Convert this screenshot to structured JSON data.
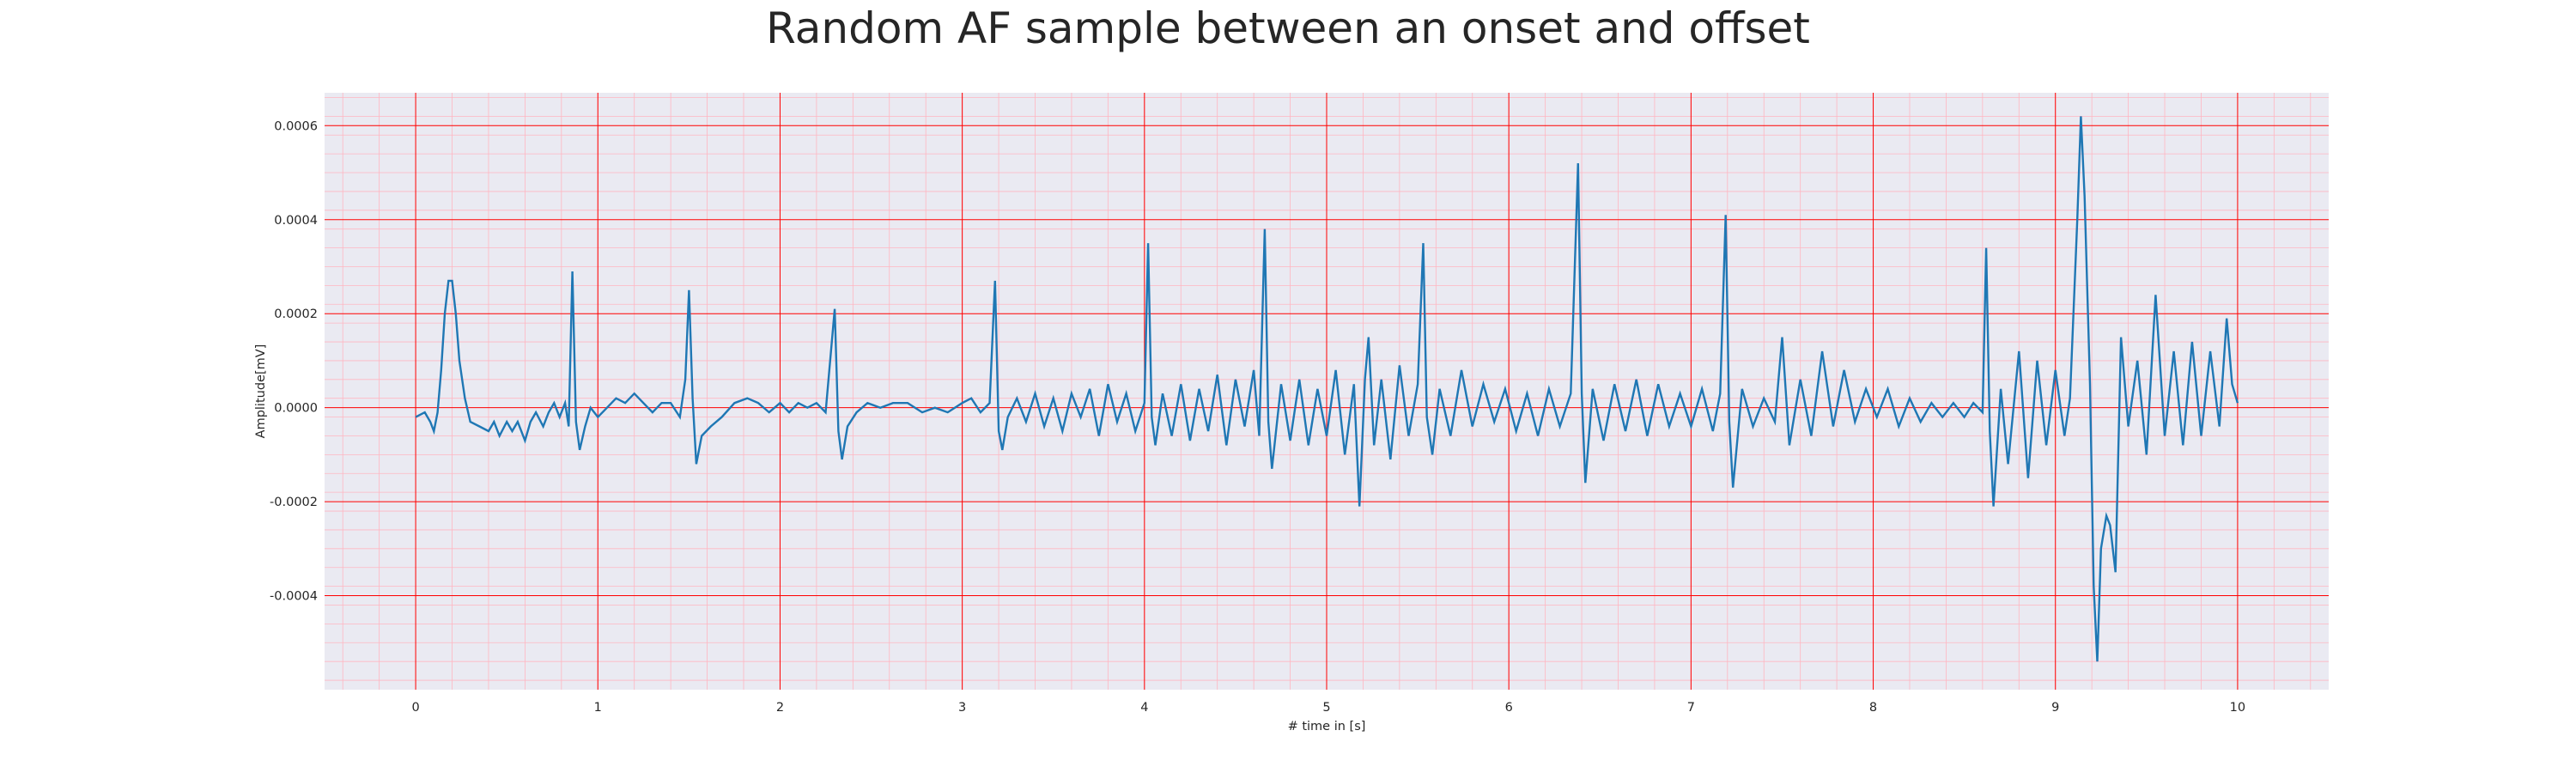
{
  "chart_data": {
    "type": "line",
    "title": "Random AF sample between an onset and offset",
    "xlabel": "# time in [s]",
    "ylabel": "Amplitude[mV]",
    "xlim": [
      -0.5,
      10.5
    ],
    "ylim": [
      -0.0006,
      0.00067
    ],
    "x_ticks": [
      0,
      1,
      2,
      3,
      4,
      5,
      6,
      7,
      8,
      9,
      10
    ],
    "x_tick_labels": [
      "0",
      "1",
      "2",
      "3",
      "4",
      "5",
      "6",
      "7",
      "8",
      "9",
      "10"
    ],
    "y_ticks": [
      -0.0004,
      -0.0002,
      0.0,
      0.0002,
      0.0004,
      0.0006
    ],
    "y_tick_labels": [
      "-0.0004",
      "-0.0002",
      "0.0000",
      "0.0002",
      "0.0004",
      "0.0006"
    ],
    "grid": true,
    "minor_grid": true,
    "colors": {
      "line": "#1f77b4",
      "plot_background": "#eaeaf2",
      "major_grid": "#ff0000",
      "minor_grid": "#ffb6c1"
    },
    "series": [
      {
        "points": [
          [
            0.0,
            -2e-05
          ],
          [
            0.05,
            -1e-05
          ],
          [
            0.08,
            -3e-05
          ],
          [
            0.1,
            -5e-05
          ],
          [
            0.12,
            -1e-05
          ],
          [
            0.14,
            8e-05
          ],
          [
            0.16,
            0.0002
          ],
          [
            0.18,
            0.00027
          ],
          [
            0.2,
            0.00027
          ],
          [
            0.22,
            0.0002
          ],
          [
            0.24,
            0.0001
          ],
          [
            0.27,
            2e-05
          ],
          [
            0.3,
            -3e-05
          ],
          [
            0.35,
            -4e-05
          ],
          [
            0.4,
            -5e-05
          ],
          [
            0.43,
            -3e-05
          ],
          [
            0.46,
            -6e-05
          ],
          [
            0.5,
            -3e-05
          ],
          [
            0.53,
            -5e-05
          ],
          [
            0.56,
            -3e-05
          ],
          [
            0.6,
            -7e-05
          ],
          [
            0.63,
            -3e-05
          ],
          [
            0.66,
            -1e-05
          ],
          [
            0.7,
            -4e-05
          ],
          [
            0.73,
            -1e-05
          ],
          [
            0.76,
            1e-05
          ],
          [
            0.79,
            -2e-05
          ],
          [
            0.82,
            1e-05
          ],
          [
            0.84,
            -4e-05
          ],
          [
            0.86,
            0.00029
          ],
          [
            0.88,
            -3e-05
          ],
          [
            0.9,
            -9e-05
          ],
          [
            0.93,
            -4e-05
          ],
          [
            0.96,
            0.0
          ],
          [
            1.0,
            -2e-05
          ],
          [
            1.05,
            0.0
          ],
          [
            1.1,
            2e-05
          ],
          [
            1.15,
            1e-05
          ],
          [
            1.2,
            3e-05
          ],
          [
            1.25,
            1e-05
          ],
          [
            1.3,
            -1e-05
          ],
          [
            1.35,
            1e-05
          ],
          [
            1.4,
            1e-05
          ],
          [
            1.45,
            -2e-05
          ],
          [
            1.48,
            6e-05
          ],
          [
            1.5,
            0.00025
          ],
          [
            1.52,
            2e-05
          ],
          [
            1.54,
            -0.00012
          ],
          [
            1.57,
            -6e-05
          ],
          [
            1.62,
            -4e-05
          ],
          [
            1.68,
            -2e-05
          ],
          [
            1.75,
            1e-05
          ],
          [
            1.82,
            2e-05
          ],
          [
            1.88,
            1e-05
          ],
          [
            1.94,
            -1e-05
          ],
          [
            2.0,
            1e-05
          ],
          [
            2.05,
            -1e-05
          ],
          [
            2.1,
            1e-05
          ],
          [
            2.15,
            0.0
          ],
          [
            2.2,
            1e-05
          ],
          [
            2.25,
            -1e-05
          ],
          [
            2.3,
            0.00021
          ],
          [
            2.32,
            -5e-05
          ],
          [
            2.34,
            -0.00011
          ],
          [
            2.37,
            -4e-05
          ],
          [
            2.42,
            -1e-05
          ],
          [
            2.48,
            1e-05
          ],
          [
            2.55,
            0.0
          ],
          [
            2.62,
            1e-05
          ],
          [
            2.7,
            1e-05
          ],
          [
            2.78,
            -1e-05
          ],
          [
            2.85,
            0.0
          ],
          [
            2.92,
            -1e-05
          ],
          [
            3.0,
            1e-05
          ],
          [
            3.05,
            2e-05
          ],
          [
            3.1,
            -1e-05
          ],
          [
            3.15,
            1e-05
          ],
          [
            3.18,
            0.00027
          ],
          [
            3.2,
            -5e-05
          ],
          [
            3.22,
            -9e-05
          ],
          [
            3.25,
            -2e-05
          ],
          [
            3.3,
            2e-05
          ],
          [
            3.35,
            -3e-05
          ],
          [
            3.4,
            3e-05
          ],
          [
            3.45,
            -4e-05
          ],
          [
            3.5,
            2e-05
          ],
          [
            3.55,
            -5e-05
          ],
          [
            3.6,
            3e-05
          ],
          [
            3.65,
            -2e-05
          ],
          [
            3.7,
            4e-05
          ],
          [
            3.75,
            -6e-05
          ],
          [
            3.8,
            5e-05
          ],
          [
            3.85,
            -3e-05
          ],
          [
            3.9,
            3e-05
          ],
          [
            3.95,
            -5e-05
          ],
          [
            4.0,
            1e-05
          ],
          [
            4.02,
            0.00035
          ],
          [
            4.04,
            -2e-05
          ],
          [
            4.06,
            -8e-05
          ],
          [
            4.1,
            3e-05
          ],
          [
            4.15,
            -6e-05
          ],
          [
            4.2,
            5e-05
          ],
          [
            4.25,
            -7e-05
          ],
          [
            4.3,
            4e-05
          ],
          [
            4.35,
            -5e-05
          ],
          [
            4.4,
            7e-05
          ],
          [
            4.45,
            -8e-05
          ],
          [
            4.5,
            6e-05
          ],
          [
            4.55,
            -4e-05
          ],
          [
            4.6,
            8e-05
          ],
          [
            4.63,
            -6e-05
          ],
          [
            4.66,
            0.00038
          ],
          [
            4.68,
            -3e-05
          ],
          [
            4.7,
            -0.00013
          ],
          [
            4.75,
            5e-05
          ],
          [
            4.8,
            -7e-05
          ],
          [
            4.85,
            6e-05
          ],
          [
            4.9,
            -8e-05
          ],
          [
            4.95,
            4e-05
          ],
          [
            5.0,
            -6e-05
          ],
          [
            5.05,
            8e-05
          ],
          [
            5.1,
            -0.0001
          ],
          [
            5.15,
            5e-05
          ],
          [
            5.18,
            -0.00021
          ],
          [
            5.21,
            6e-05
          ],
          [
            5.23,
            0.00015
          ],
          [
            5.26,
            -8e-05
          ],
          [
            5.3,
            6e-05
          ],
          [
            5.35,
            -0.00011
          ],
          [
            5.4,
            9e-05
          ],
          [
            5.45,
            -6e-05
          ],
          [
            5.5,
            5e-05
          ],
          [
            5.53,
            0.00035
          ],
          [
            5.55,
            -2e-05
          ],
          [
            5.58,
            -0.0001
          ],
          [
            5.62,
            4e-05
          ],
          [
            5.68,
            -6e-05
          ],
          [
            5.74,
            8e-05
          ],
          [
            5.8,
            -4e-05
          ],
          [
            5.86,
            5e-05
          ],
          [
            5.92,
            -3e-05
          ],
          [
            5.98,
            4e-05
          ],
          [
            6.04,
            -5e-05
          ],
          [
            6.1,
            3e-05
          ],
          [
            6.16,
            -6e-05
          ],
          [
            6.22,
            4e-05
          ],
          [
            6.28,
            -4e-05
          ],
          [
            6.34,
            3e-05
          ],
          [
            6.38,
            0.00052
          ],
          [
            6.4,
            3e-05
          ],
          [
            6.42,
            -0.00016
          ],
          [
            6.46,
            4e-05
          ],
          [
            6.52,
            -7e-05
          ],
          [
            6.58,
            5e-05
          ],
          [
            6.64,
            -5e-05
          ],
          [
            6.7,
            6e-05
          ],
          [
            6.76,
            -6e-05
          ],
          [
            6.82,
            5e-05
          ],
          [
            6.88,
            -4e-05
          ],
          [
            6.94,
            3e-05
          ],
          [
            7.0,
            -4e-05
          ],
          [
            7.06,
            4e-05
          ],
          [
            7.12,
            -5e-05
          ],
          [
            7.16,
            3e-05
          ],
          [
            7.19,
            0.00041
          ],
          [
            7.21,
            -3e-05
          ],
          [
            7.23,
            -0.00017
          ],
          [
            7.28,
            4e-05
          ],
          [
            7.34,
            -4e-05
          ],
          [
            7.4,
            2e-05
          ],
          [
            7.46,
            -3e-05
          ],
          [
            7.5,
            0.00015
          ],
          [
            7.54,
            -8e-05
          ],
          [
            7.6,
            6e-05
          ],
          [
            7.66,
            -6e-05
          ],
          [
            7.72,
            0.00012
          ],
          [
            7.78,
            -4e-05
          ],
          [
            7.84,
            8e-05
          ],
          [
            7.9,
            -3e-05
          ],
          [
            7.96,
            4e-05
          ],
          [
            8.02,
            -2e-05
          ],
          [
            8.08,
            4e-05
          ],
          [
            8.14,
            -4e-05
          ],
          [
            8.2,
            2e-05
          ],
          [
            8.26,
            -3e-05
          ],
          [
            8.32,
            1e-05
          ],
          [
            8.38,
            -2e-05
          ],
          [
            8.44,
            1e-05
          ],
          [
            8.5,
            -2e-05
          ],
          [
            8.55,
            1e-05
          ],
          [
            8.6,
            -1e-05
          ],
          [
            8.62,
            0.00034
          ],
          [
            8.64,
            -5e-05
          ],
          [
            8.66,
            -0.00021
          ],
          [
            8.7,
            4e-05
          ],
          [
            8.74,
            -0.00012
          ],
          [
            8.8,
            0.00012
          ],
          [
            8.85,
            -0.00015
          ],
          [
            8.9,
            0.0001
          ],
          [
            8.95,
            -8e-05
          ],
          [
            9.0,
            8e-05
          ],
          [
            9.05,
            -6e-05
          ],
          [
            9.08,
            2e-05
          ],
          [
            9.12,
            0.0004
          ],
          [
            9.14,
            0.00062
          ],
          [
            9.16,
            0.00045
          ],
          [
            9.19,
            5e-05
          ],
          [
            9.21,
            -0.00038
          ],
          [
            9.23,
            -0.00054
          ],
          [
            9.25,
            -0.0003
          ],
          [
            9.28,
            -0.00023
          ],
          [
            9.3,
            -0.00025
          ],
          [
            9.33,
            -0.00035
          ],
          [
            9.36,
            0.00015
          ],
          [
            9.4,
            -4e-05
          ],
          [
            9.45,
            0.0001
          ],
          [
            9.5,
            -0.0001
          ],
          [
            9.55,
            0.00024
          ],
          [
            9.6,
            -6e-05
          ],
          [
            9.65,
            0.00012
          ],
          [
            9.7,
            -8e-05
          ],
          [
            9.75,
            0.00014
          ],
          [
            9.8,
            -6e-05
          ],
          [
            9.85,
            0.00012
          ],
          [
            9.9,
            -4e-05
          ],
          [
            9.94,
            0.00019
          ],
          [
            9.97,
            5e-05
          ],
          [
            10.0,
            1e-05
          ]
        ]
      }
    ]
  }
}
